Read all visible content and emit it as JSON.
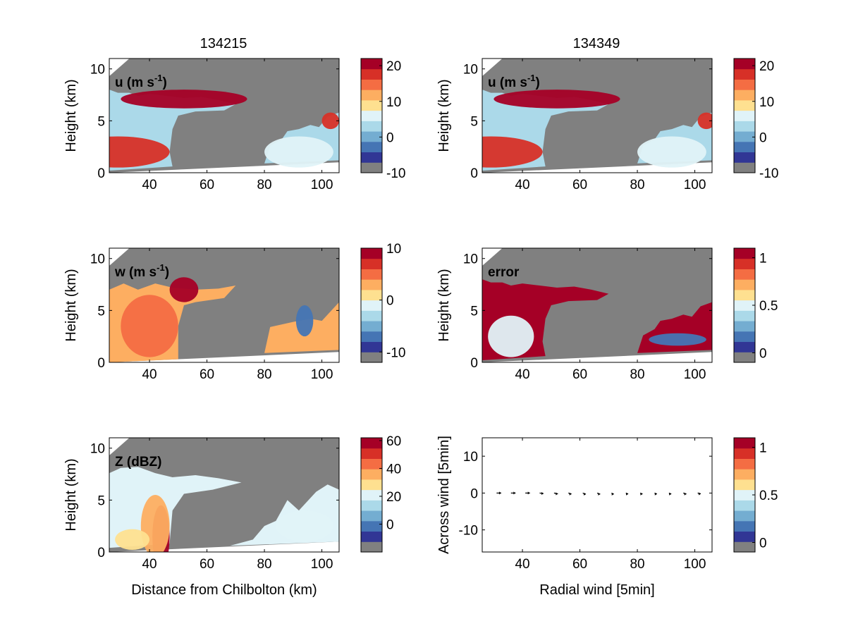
{
  "column_titles": [
    "134215",
    "134349"
  ],
  "colors": {
    "masked": "#808080",
    "panel_background": "#ffffff",
    "palette": [
      "#313695",
      "#4575b4",
      "#74add1",
      "#abd9e9",
      "#e0f3f8",
      "#fee090",
      "#fdae61",
      "#f46d43",
      "#d73027",
      "#a50026"
    ]
  },
  "chart_data": [
    {
      "type": "heatmap",
      "id": "u_134215",
      "title": "134215",
      "annotation": "u (m s",
      "annotation_sup": "-1",
      "ylabel": "Height (km)",
      "xlabel": "",
      "xlim": [
        26,
        106
      ],
      "ylim": [
        0,
        11
      ],
      "xticks": [
        "40",
        "60",
        "80",
        "100"
      ],
      "yticks": [
        "0",
        "5",
        "10"
      ],
      "colorbar": {
        "range": [
          -10,
          22
        ],
        "ticks": [
          "-10",
          "0",
          "10",
          "20"
        ]
      },
      "fields": [
        {
          "name": "low_jet",
          "center": [
            29,
            2.0
          ],
          "size": [
            18,
            1.5
          ],
          "value": 18
        },
        {
          "name": "upper_outflow",
          "center": [
            52,
            7.1
          ],
          "size": [
            22,
            0.9
          ],
          "value": 20
        },
        {
          "name": "far_echo",
          "center": [
            92,
            2.0
          ],
          "size": [
            12,
            1.5
          ],
          "value": 3
        },
        {
          "name": "far_top",
          "center": [
            103,
            5.0
          ],
          "size": [
            3,
            0.8
          ],
          "value": 16
        }
      ]
    },
    {
      "type": "heatmap",
      "id": "u_134349",
      "title": "134349",
      "annotation": "u (m s",
      "annotation_sup": "-1",
      "ylabel": "Height (km)",
      "xlabel": "",
      "xlim": [
        26,
        106
      ],
      "ylim": [
        0,
        11
      ],
      "xticks": [
        "40",
        "60",
        "80",
        "100"
      ],
      "yticks": [
        "0",
        "5",
        "10"
      ],
      "colorbar": {
        "range": [
          -10,
          22
        ],
        "ticks": [
          "-10",
          "0",
          "10",
          "20"
        ]
      },
      "fields": [
        {
          "name": "low_jet",
          "center": [
            29,
            2.0
          ],
          "size": [
            18,
            1.5
          ],
          "value": 18
        },
        {
          "name": "upper_outflow",
          "center": [
            52,
            7.1
          ],
          "size": [
            22,
            0.9
          ],
          "value": 20
        },
        {
          "name": "far_echo",
          "center": [
            92,
            2.0
          ],
          "size": [
            12,
            1.5
          ],
          "value": 3
        },
        {
          "name": "far_top",
          "center": [
            104,
            5.0
          ],
          "size": [
            3,
            0.8
          ],
          "value": 16
        }
      ]
    },
    {
      "type": "heatmap",
      "id": "w_134215",
      "title": "",
      "annotation": "w (m s",
      "annotation_sup": "-1",
      "ylabel": "Height (km)",
      "xlabel": "",
      "xlim": [
        26,
        106
      ],
      "ylim": [
        0,
        11
      ],
      "xticks": [
        "40",
        "60",
        "80",
        "100"
      ],
      "yticks": [
        "0",
        "5",
        "10"
      ],
      "colorbar": {
        "range": [
          -12,
          10
        ],
        "ticks": [
          "-10",
          "0",
          "10"
        ]
      },
      "fields": [
        {
          "name": "updraft_core",
          "center": [
            40,
            3.5
          ],
          "size": [
            10,
            3
          ],
          "value": 4
        },
        {
          "name": "upper_cell",
          "center": [
            52,
            7.0
          ],
          "size": [
            5,
            1.2
          ],
          "value": 8
        },
        {
          "name": "far_downdraft",
          "center": [
            94,
            4.0
          ],
          "size": [
            3,
            1.5
          ],
          "value": -8
        }
      ]
    },
    {
      "type": "heatmap",
      "id": "error_134349",
      "title": "",
      "annotation": "error",
      "annotation_sup": "",
      "ylabel": "Height (km)",
      "xlabel": "",
      "xlim": [
        26,
        106
      ],
      "ylim": [
        0,
        11
      ],
      "xticks": [
        "40",
        "60",
        "80",
        "100"
      ],
      "yticks": [
        "0",
        "5",
        "10"
      ],
      "colorbar": {
        "range": [
          -0.1,
          1.1
        ],
        "ticks": [
          "0",
          "0.5",
          "1"
        ]
      },
      "fields": [
        {
          "name": "interior_low",
          "center": [
            36,
            2.5
          ],
          "size": [
            8,
            2
          ],
          "value": 0.45
        },
        {
          "name": "far_interior",
          "center": [
            94,
            2.2
          ],
          "size": [
            10,
            0.6
          ],
          "value": 0.1
        }
      ]
    },
    {
      "type": "heatmap",
      "id": "Z_134215",
      "title": "",
      "annotation": "Z (dBZ)",
      "annotation_sup": "",
      "ylabel": "Height (km)",
      "xlabel": "Distance from Chilbolton (km)",
      "xlim": [
        26,
        106
      ],
      "ylim": [
        0,
        11
      ],
      "xticks": [
        "40",
        "60",
        "80",
        "100"
      ],
      "yticks": [
        "0",
        "5",
        "10"
      ],
      "colorbar": {
        "range": [
          -20,
          62
        ],
        "ticks": [
          "0",
          "20",
          "40",
          "60"
        ]
      },
      "fields": [
        {
          "name": "rain_core",
          "center": [
            44,
            1.5
          ],
          "size": [
            3,
            3
          ],
          "value": 55
        },
        {
          "name": "core_halo",
          "center": [
            42,
            2.5
          ],
          "size": [
            5,
            3
          ],
          "value": 35
        },
        {
          "name": "low_level_rain",
          "center": [
            34,
            1.2
          ],
          "size": [
            6,
            1
          ],
          "value": 28
        },
        {
          "name": "far_cells",
          "center": [
            94,
            2.5
          ],
          "size": [
            10,
            1.5
          ],
          "value": 20
        }
      ]
    },
    {
      "type": "scatter",
      "id": "winds_5min",
      "title": "",
      "annotation": "",
      "annotation_sup": "",
      "ylabel": "Across wind [5min]",
      "xlabel": "Radial wind [5min]",
      "xlim": [
        26,
        106
      ],
      "ylim": [
        -16,
        15
      ],
      "xticks": [
        "40",
        "60",
        "80",
        "100"
      ],
      "yticks": [
        "-10",
        "0",
        "10"
      ],
      "colorbar": {
        "range": [
          -0.1,
          1.1
        ],
        "ticks": [
          "0",
          "0.5",
          "1"
        ]
      },
      "x": [
        31,
        36,
        41,
        46,
        51,
        56,
        61,
        66,
        71,
        76,
        81,
        86,
        91,
        96,
        101,
        106
      ],
      "u": [
        3,
        3,
        3,
        2.5,
        2.5,
        2,
        2,
        2,
        1.5,
        1.5,
        1.5,
        1.5,
        1.5,
        2,
        2,
        1.5
      ],
      "v": [
        0,
        0,
        0,
        -0.3,
        -0.5,
        -0.6,
        -0.7,
        -0.7,
        -0.7,
        -0.6,
        -0.6,
        -0.6,
        -0.6,
        -0.6,
        -0.5,
        0
      ]
    }
  ]
}
